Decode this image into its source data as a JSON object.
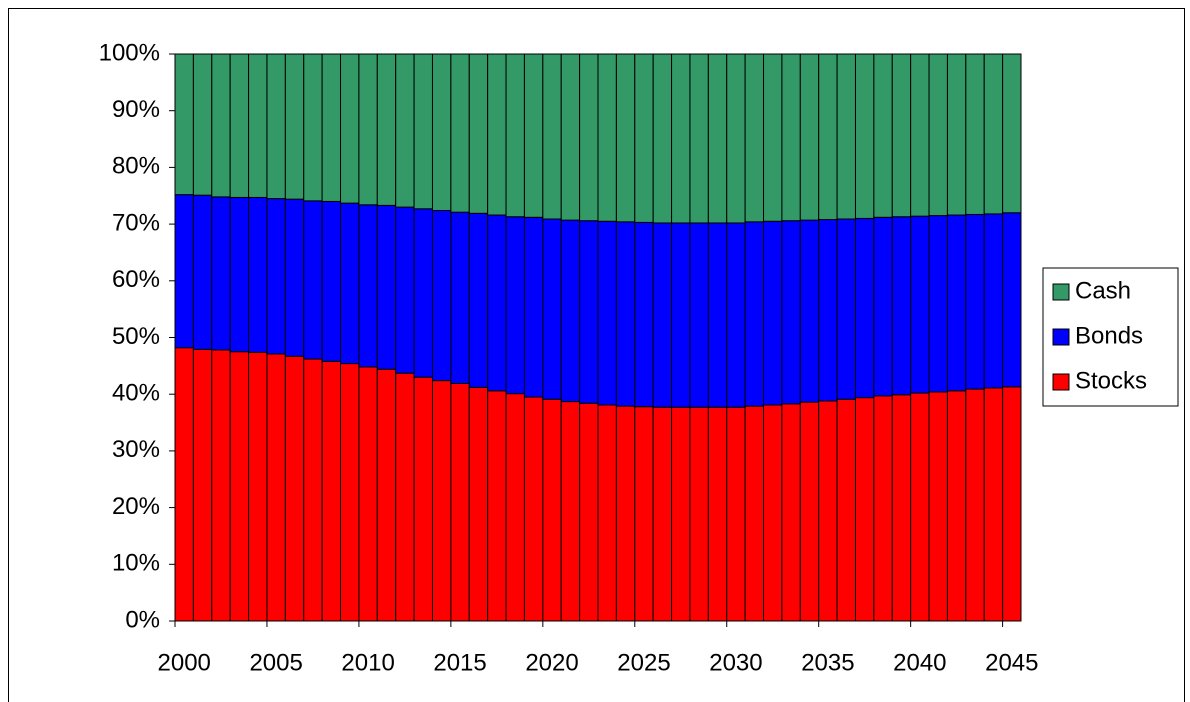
{
  "chart_data": {
    "type": "stacked_bar_100",
    "categories": [
      "2000",
      null,
      null,
      null,
      null,
      "2005",
      null,
      null,
      null,
      null,
      "2010",
      null,
      null,
      null,
      null,
      "2015",
      null,
      null,
      null,
      null,
      "2020",
      null,
      null,
      null,
      null,
      "2025",
      null,
      null,
      null,
      null,
      "2030",
      null,
      null,
      null,
      null,
      "2035",
      null,
      null,
      null,
      null,
      "2040",
      null,
      null,
      null,
      null,
      "2045"
    ],
    "series": [
      {
        "name": "Stocks",
        "color": "#ff0000",
        "values": [
          48.2,
          47.9,
          47.8,
          47.5,
          47.4,
          47.1,
          46.7,
          46.2,
          45.8,
          45.4,
          44.8,
          44.4,
          43.7,
          43.0,
          42.4,
          41.9,
          41.2,
          40.6,
          40.1,
          39.5,
          39.1,
          38.7,
          38.4,
          38.1,
          37.9,
          37.8,
          37.7,
          37.7,
          37.7,
          37.7,
          37.7,
          37.9,
          38.1,
          38.3,
          38.6,
          38.8,
          39.1,
          39.4,
          39.7,
          39.9,
          40.2,
          40.4,
          40.6,
          40.9,
          41.1,
          41.3
        ]
      },
      {
        "name": "Bonds",
        "color": "#0000ff",
        "values": [
          27.0,
          27.2,
          27.0,
          27.2,
          27.3,
          27.4,
          27.7,
          27.9,
          28.2,
          28.3,
          28.6,
          28.9,
          29.3,
          29.7,
          30.0,
          30.2,
          30.7,
          31.0,
          31.2,
          31.7,
          31.8,
          32.0,
          32.2,
          32.4,
          32.5,
          32.5,
          32.5,
          32.5,
          32.5,
          32.5,
          32.5,
          32.5,
          32.4,
          32.3,
          32.1,
          32.0,
          31.8,
          31.6,
          31.5,
          31.4,
          31.2,
          31.1,
          31.0,
          30.8,
          30.7,
          30.7
        ]
      },
      {
        "name": "Cash",
        "color": "#339966",
        "values": [
          24.8,
          24.9,
          25.2,
          25.3,
          25.3,
          25.5,
          25.6,
          25.9,
          26.0,
          26.3,
          26.6,
          26.7,
          27.0,
          27.3,
          27.6,
          27.9,
          28.1,
          28.4,
          28.7,
          28.8,
          29.1,
          29.3,
          29.4,
          29.5,
          29.6,
          29.7,
          29.8,
          29.8,
          29.8,
          29.8,
          29.8,
          29.6,
          29.5,
          29.4,
          29.3,
          29.2,
          29.1,
          29.0,
          28.8,
          28.7,
          28.6,
          28.5,
          28.4,
          28.3,
          28.2,
          28.0
        ]
      }
    ],
    "ylim": [
      0,
      100
    ],
    "yticks": [
      {
        "value": 0,
        "label": "0%"
      },
      {
        "value": 10,
        "label": "10%"
      },
      {
        "value": 20,
        "label": "20%"
      },
      {
        "value": 30,
        "label": "30%"
      },
      {
        "value": 40,
        "label": "40%"
      },
      {
        "value": 50,
        "label": "50%"
      },
      {
        "value": 60,
        "label": "60%"
      },
      {
        "value": 70,
        "label": "70%"
      },
      {
        "value": 80,
        "label": "80%"
      },
      {
        "value": 90,
        "label": "90%"
      },
      {
        "value": 100,
        "label": "100%"
      }
    ],
    "legend": "right"
  }
}
